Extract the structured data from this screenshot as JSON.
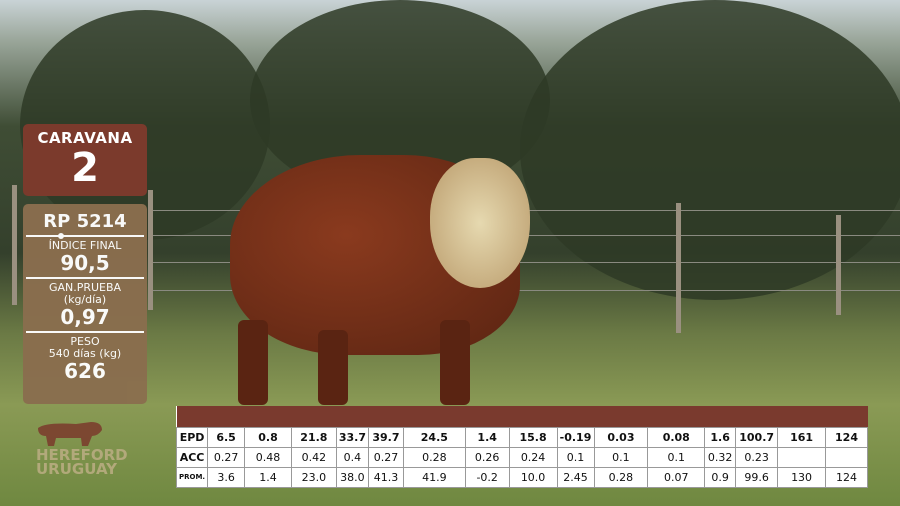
{
  "caravana": {
    "label": "CARAVANA",
    "number": "2"
  },
  "info": {
    "rp": "RP 5214",
    "indice_label": "ÍNDICE FINAL",
    "indice_value": "90,5",
    "gan_label1": "GAN.PRUEBA",
    "gan_label2": "(kg/día)",
    "gan_value": "0,97",
    "peso_label1": "PESO",
    "peso_label2": "540 días (kg)",
    "peso_value": "626"
  },
  "logo": {
    "line1": "HEREFORD",
    "line2": "URUGUAY"
  },
  "colors": {
    "caravana_bg": "#7b3a2c",
    "info_bg": "#8a6e4e",
    "table_header": "#7a3a2e"
  },
  "table": {
    "rows": [
      {
        "label": "EPD",
        "values": [
          "6.5",
          "0.8",
          "21.8",
          "33.7",
          "39.7",
          "24.5",
          "1.4",
          "15.8",
          "-0.19",
          "0.03",
          "0.08",
          "1.6",
          "100.7",
          "161",
          "124"
        ]
      },
      {
        "label": "ACC",
        "values": [
          "0.27",
          "0.48",
          "0.42",
          "0.4",
          "0.27",
          "0.28",
          "0.26",
          "0.24",
          "0.1",
          "0.1",
          "0.1",
          "0.32",
          "0.23",
          "",
          ""
        ]
      },
      {
        "label": "PROM.",
        "values": [
          "3.6",
          "1.4",
          "23.0",
          "38.0",
          "41.3",
          "41.9",
          "-0.2",
          "10.0",
          "2.45",
          "0.28",
          "0.07",
          "0.9",
          "99.6",
          "130",
          "124"
        ]
      }
    ]
  }
}
